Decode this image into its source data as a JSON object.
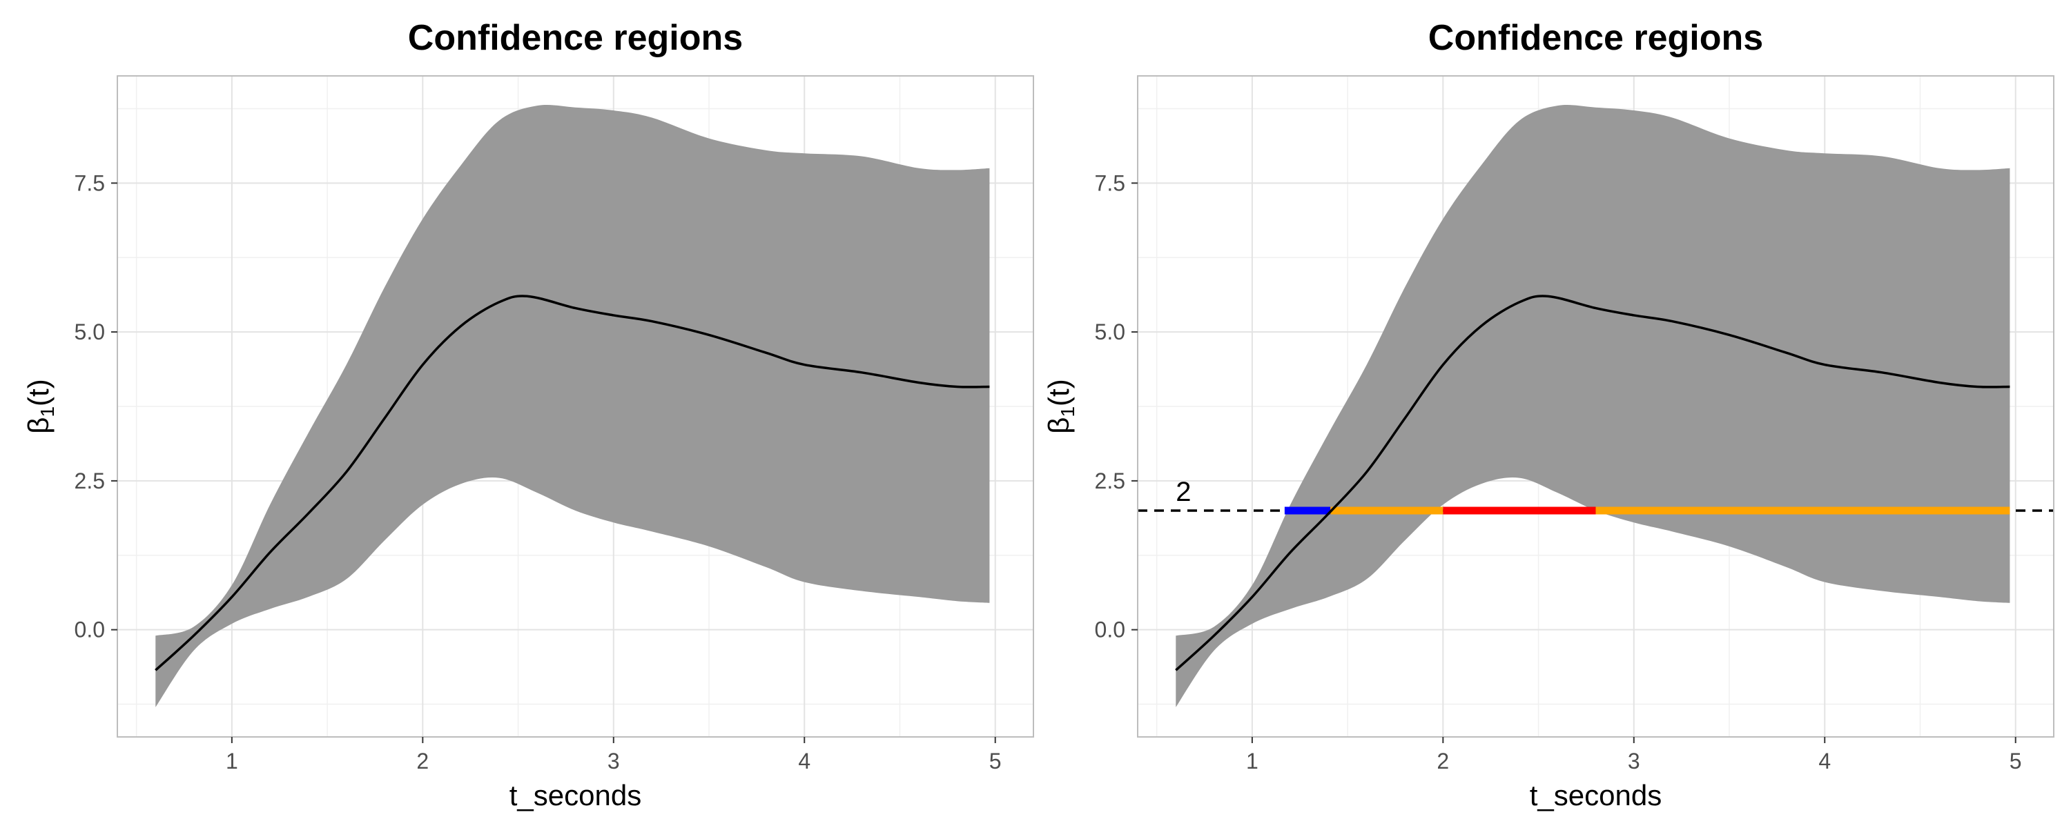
{
  "chart_data": [
    {
      "type": "line",
      "title": "Confidence regions",
      "xlabel": "t_seconds",
      "ylabel": "β1(t)",
      "ylabel_main": "β",
      "ylabel_sub": "1",
      "ylabel_tail": "(t)",
      "xlim": [
        0.4,
        5.2
      ],
      "ylim": [
        -1.8,
        9.3
      ],
      "x_ticks": [
        1,
        2,
        3,
        4,
        5
      ],
      "x_tick_labels": [
        "1",
        "2",
        "3",
        "4",
        "5"
      ],
      "y_ticks": [
        0,
        2.5,
        5,
        7.5
      ],
      "y_tick_labels": [
        "0.0",
        "2.5",
        "5.0",
        "7.5"
      ],
      "grid": true,
      "band_color": "#999999",
      "line_color": "#000000",
      "series": [
        {
          "name": "estimate",
          "x": [
            0.6,
            0.8,
            1.0,
            1.2,
            1.4,
            1.6,
            1.8,
            2.0,
            2.2,
            2.4,
            2.55,
            2.8,
            3.0,
            3.2,
            3.5,
            3.8,
            4.0,
            4.3,
            4.6,
            4.8,
            4.97
          ],
          "y": [
            -0.68,
            -0.1,
            0.55,
            1.3,
            1.95,
            2.65,
            3.55,
            4.45,
            5.1,
            5.5,
            5.6,
            5.4,
            5.28,
            5.18,
            4.95,
            4.65,
            4.45,
            4.32,
            4.15,
            4.08,
            4.08
          ]
        }
      ],
      "band": {
        "x": [
          0.6,
          0.8,
          1.0,
          1.2,
          1.4,
          1.6,
          1.8,
          2.0,
          2.2,
          2.4,
          2.6,
          2.8,
          3.0,
          3.2,
          3.5,
          3.8,
          4.0,
          4.3,
          4.6,
          4.8,
          4.97
        ],
        "upper": [
          -0.1,
          0.05,
          0.75,
          2.1,
          3.3,
          4.45,
          5.75,
          6.9,
          7.8,
          8.55,
          8.8,
          8.77,
          8.72,
          8.6,
          8.25,
          8.05,
          8.0,
          7.95,
          7.75,
          7.72,
          7.75
        ],
        "lower": [
          -1.3,
          -0.35,
          0.1,
          0.35,
          0.55,
          0.85,
          1.5,
          2.1,
          2.45,
          2.55,
          2.3,
          2.0,
          1.8,
          1.65,
          1.4,
          1.05,
          0.8,
          0.65,
          0.55,
          0.48,
          0.45
        ]
      }
    },
    {
      "type": "line",
      "title": "Confidence regions",
      "xlabel": "t_seconds",
      "ylabel": "β1(t)",
      "ylabel_main": "β",
      "ylabel_sub": "1",
      "ylabel_tail": "(t)",
      "xlim": [
        0.4,
        5.2
      ],
      "ylim": [
        -1.8,
        9.3
      ],
      "x_ticks": [
        1,
        2,
        3,
        4,
        5
      ],
      "x_tick_labels": [
        "1",
        "2",
        "3",
        "4",
        "5"
      ],
      "y_ticks": [
        0,
        2.5,
        5,
        7.5
      ],
      "y_tick_labels": [
        "0.0",
        "2.5",
        "5.0",
        "7.5"
      ],
      "grid": true,
      "band_color": "#999999",
      "line_color": "#000000",
      "series": [
        {
          "name": "estimate",
          "x": [
            0.6,
            0.8,
            1.0,
            1.2,
            1.4,
            1.6,
            1.8,
            2.0,
            2.2,
            2.4,
            2.55,
            2.8,
            3.0,
            3.2,
            3.5,
            3.8,
            4.0,
            4.3,
            4.6,
            4.8,
            4.97
          ],
          "y": [
            -0.68,
            -0.1,
            0.55,
            1.3,
            1.95,
            2.65,
            3.55,
            4.45,
            5.1,
            5.5,
            5.6,
            5.4,
            5.28,
            5.18,
            4.95,
            4.65,
            4.45,
            4.32,
            4.15,
            4.08,
            4.08
          ]
        }
      ],
      "band": {
        "x": [
          0.6,
          0.8,
          1.0,
          1.2,
          1.4,
          1.6,
          1.8,
          2.0,
          2.2,
          2.4,
          2.6,
          2.8,
          3.0,
          3.2,
          3.5,
          3.8,
          4.0,
          4.3,
          4.6,
          4.8,
          4.97
        ],
        "upper": [
          -0.1,
          0.05,
          0.75,
          2.1,
          3.3,
          4.45,
          5.75,
          6.9,
          7.8,
          8.55,
          8.8,
          8.77,
          8.72,
          8.6,
          8.25,
          8.05,
          8.0,
          7.95,
          7.75,
          7.72,
          7.75
        ],
        "lower": [
          -1.3,
          -0.35,
          0.1,
          0.35,
          0.55,
          0.85,
          1.5,
          2.1,
          2.45,
          2.55,
          2.3,
          2.0,
          1.8,
          1.65,
          1.4,
          1.05,
          0.8,
          0.65,
          0.55,
          0.48,
          0.45
        ]
      },
      "hline": {
        "y": 2,
        "label": "2",
        "style": "dashed",
        "color": "#000000"
      },
      "segments": [
        {
          "name": "blue-segment",
          "x_start": 1.17,
          "x_end": 1.41,
          "y": 2,
          "color": "#0000FF"
        },
        {
          "name": "orange-segment-1",
          "x_start": 1.41,
          "x_end": 2.0,
          "y": 2,
          "color": "#FFA500"
        },
        {
          "name": "red-segment",
          "x_start": 2.0,
          "x_end": 2.8,
          "y": 2,
          "color": "#FF0000"
        },
        {
          "name": "orange-segment-2",
          "x_start": 2.8,
          "x_end": 4.97,
          "y": 2,
          "color": "#FFA500"
        }
      ]
    }
  ]
}
